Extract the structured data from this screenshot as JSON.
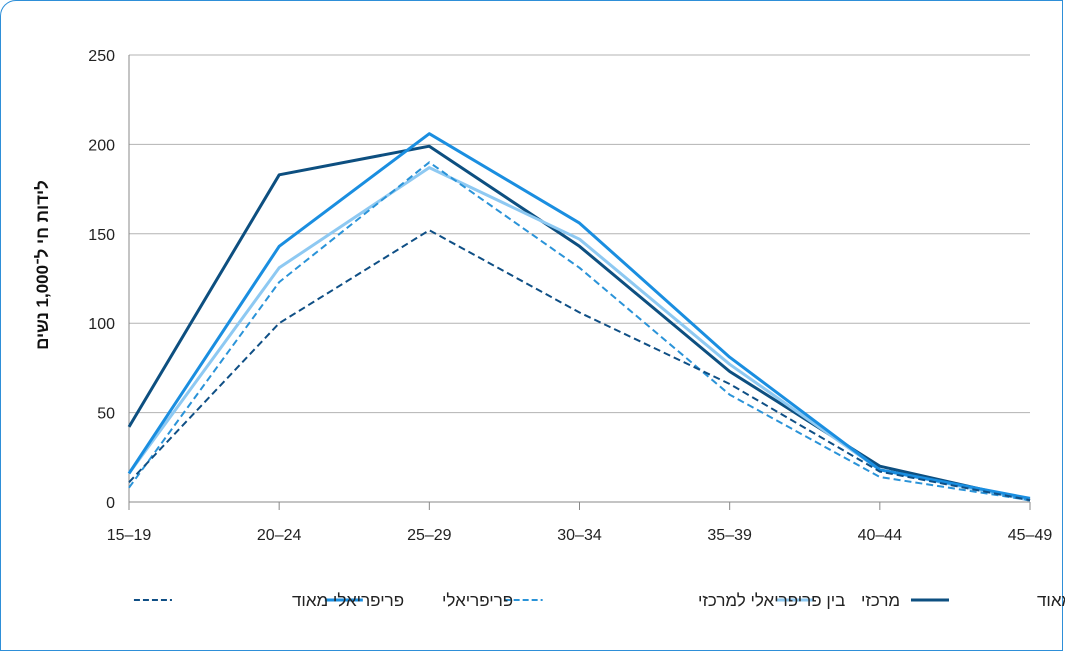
{
  "chart_data": {
    "type": "line",
    "ylabel": "לידות חי ל־1,000 נשים",
    "xlabel": "",
    "categories": [
      "15–19",
      "20–24",
      "25–29",
      "30–34",
      "35–39",
      "40–44",
      "45–49"
    ],
    "ylim": [
      0,
      250
    ],
    "yticks": [
      0,
      50,
      100,
      150,
      200,
      250
    ],
    "grid": true,
    "legend_position": "bottom",
    "series": [
      {
        "name": "מרכזי מאוד",
        "values": [
          42,
          183,
          199,
          143,
          73,
          20,
          1
        ],
        "color": "#0d4f80",
        "dash": "solid",
        "width": 3
      },
      {
        "name": "מרכזי",
        "values": [
          16,
          131,
          187,
          147,
          77,
          18,
          1
        ],
        "color": "#8ec9f2",
        "dash": "solid",
        "width": 3
      },
      {
        "name": "בין פריפריאלי למרכזי",
        "values": [
          8,
          123,
          190,
          131,
          60,
          14,
          1
        ],
        "color": "#2a93d8",
        "dash": "dashed",
        "width": 2
      },
      {
        "name": "פריפריאלי",
        "values": [
          16,
          143,
          206,
          156,
          81,
          18,
          2
        ],
        "color": "#1a8ee0",
        "dash": "solid",
        "width": 3
      },
      {
        "name": "פריפריאלי מאוד",
        "values": [
          11,
          100,
          152,
          106,
          66,
          17,
          1
        ],
        "color": "#0f4f85",
        "dash": "dashed",
        "width": 2
      }
    ]
  }
}
